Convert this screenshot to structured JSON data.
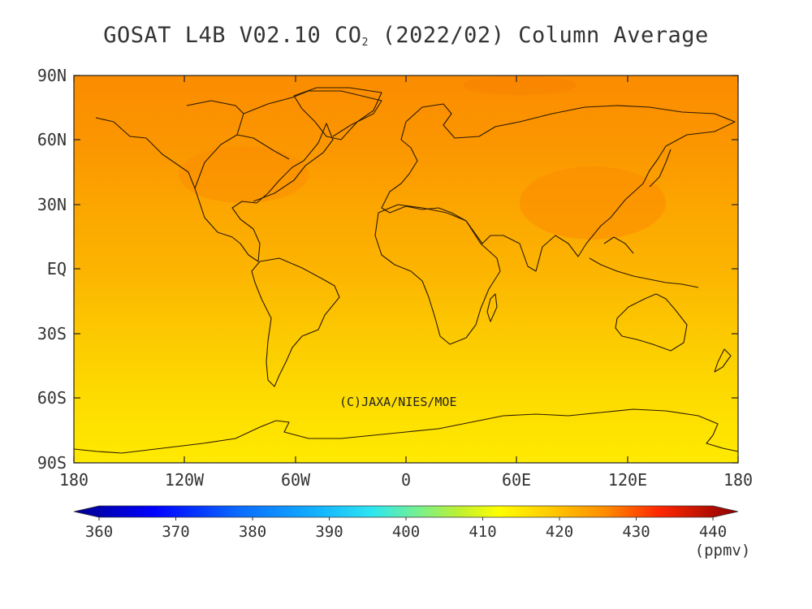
{
  "title": {
    "prefix": "GOSAT L4B V02.10 CO",
    "subscript": "2",
    "suffix": " (2022/02) Column Average"
  },
  "credit": "(C)JAXA/NIES/MOE",
  "latitude_ticks": [
    "90N",
    "60N",
    "30N",
    "EQ",
    "30S",
    "60S",
    "90S"
  ],
  "longitude_ticks": [
    "180",
    "120W",
    "60W",
    "0",
    "60E",
    "120E",
    "180"
  ],
  "colorbar": {
    "ticks": [
      "360",
      "370",
      "380",
      "390",
      "400",
      "410",
      "420",
      "430",
      "440"
    ],
    "unit": "(ppmv)",
    "min": 360,
    "max": 440
  },
  "map": {
    "lat_range": [
      -90,
      90
    ],
    "lon_range": [
      -180,
      180
    ],
    "zonal_mean_ppmv": [
      {
        "lat": 90,
        "value": 417.5
      },
      {
        "lat": 60,
        "value": 417.0
      },
      {
        "lat": 30,
        "value": 416.5
      },
      {
        "lat": 0,
        "value": 415.0
      },
      {
        "lat": -30,
        "value": 413.5
      },
      {
        "lat": -60,
        "value": 412.5
      },
      {
        "lat": -90,
        "value": 412.0
      }
    ]
  }
}
